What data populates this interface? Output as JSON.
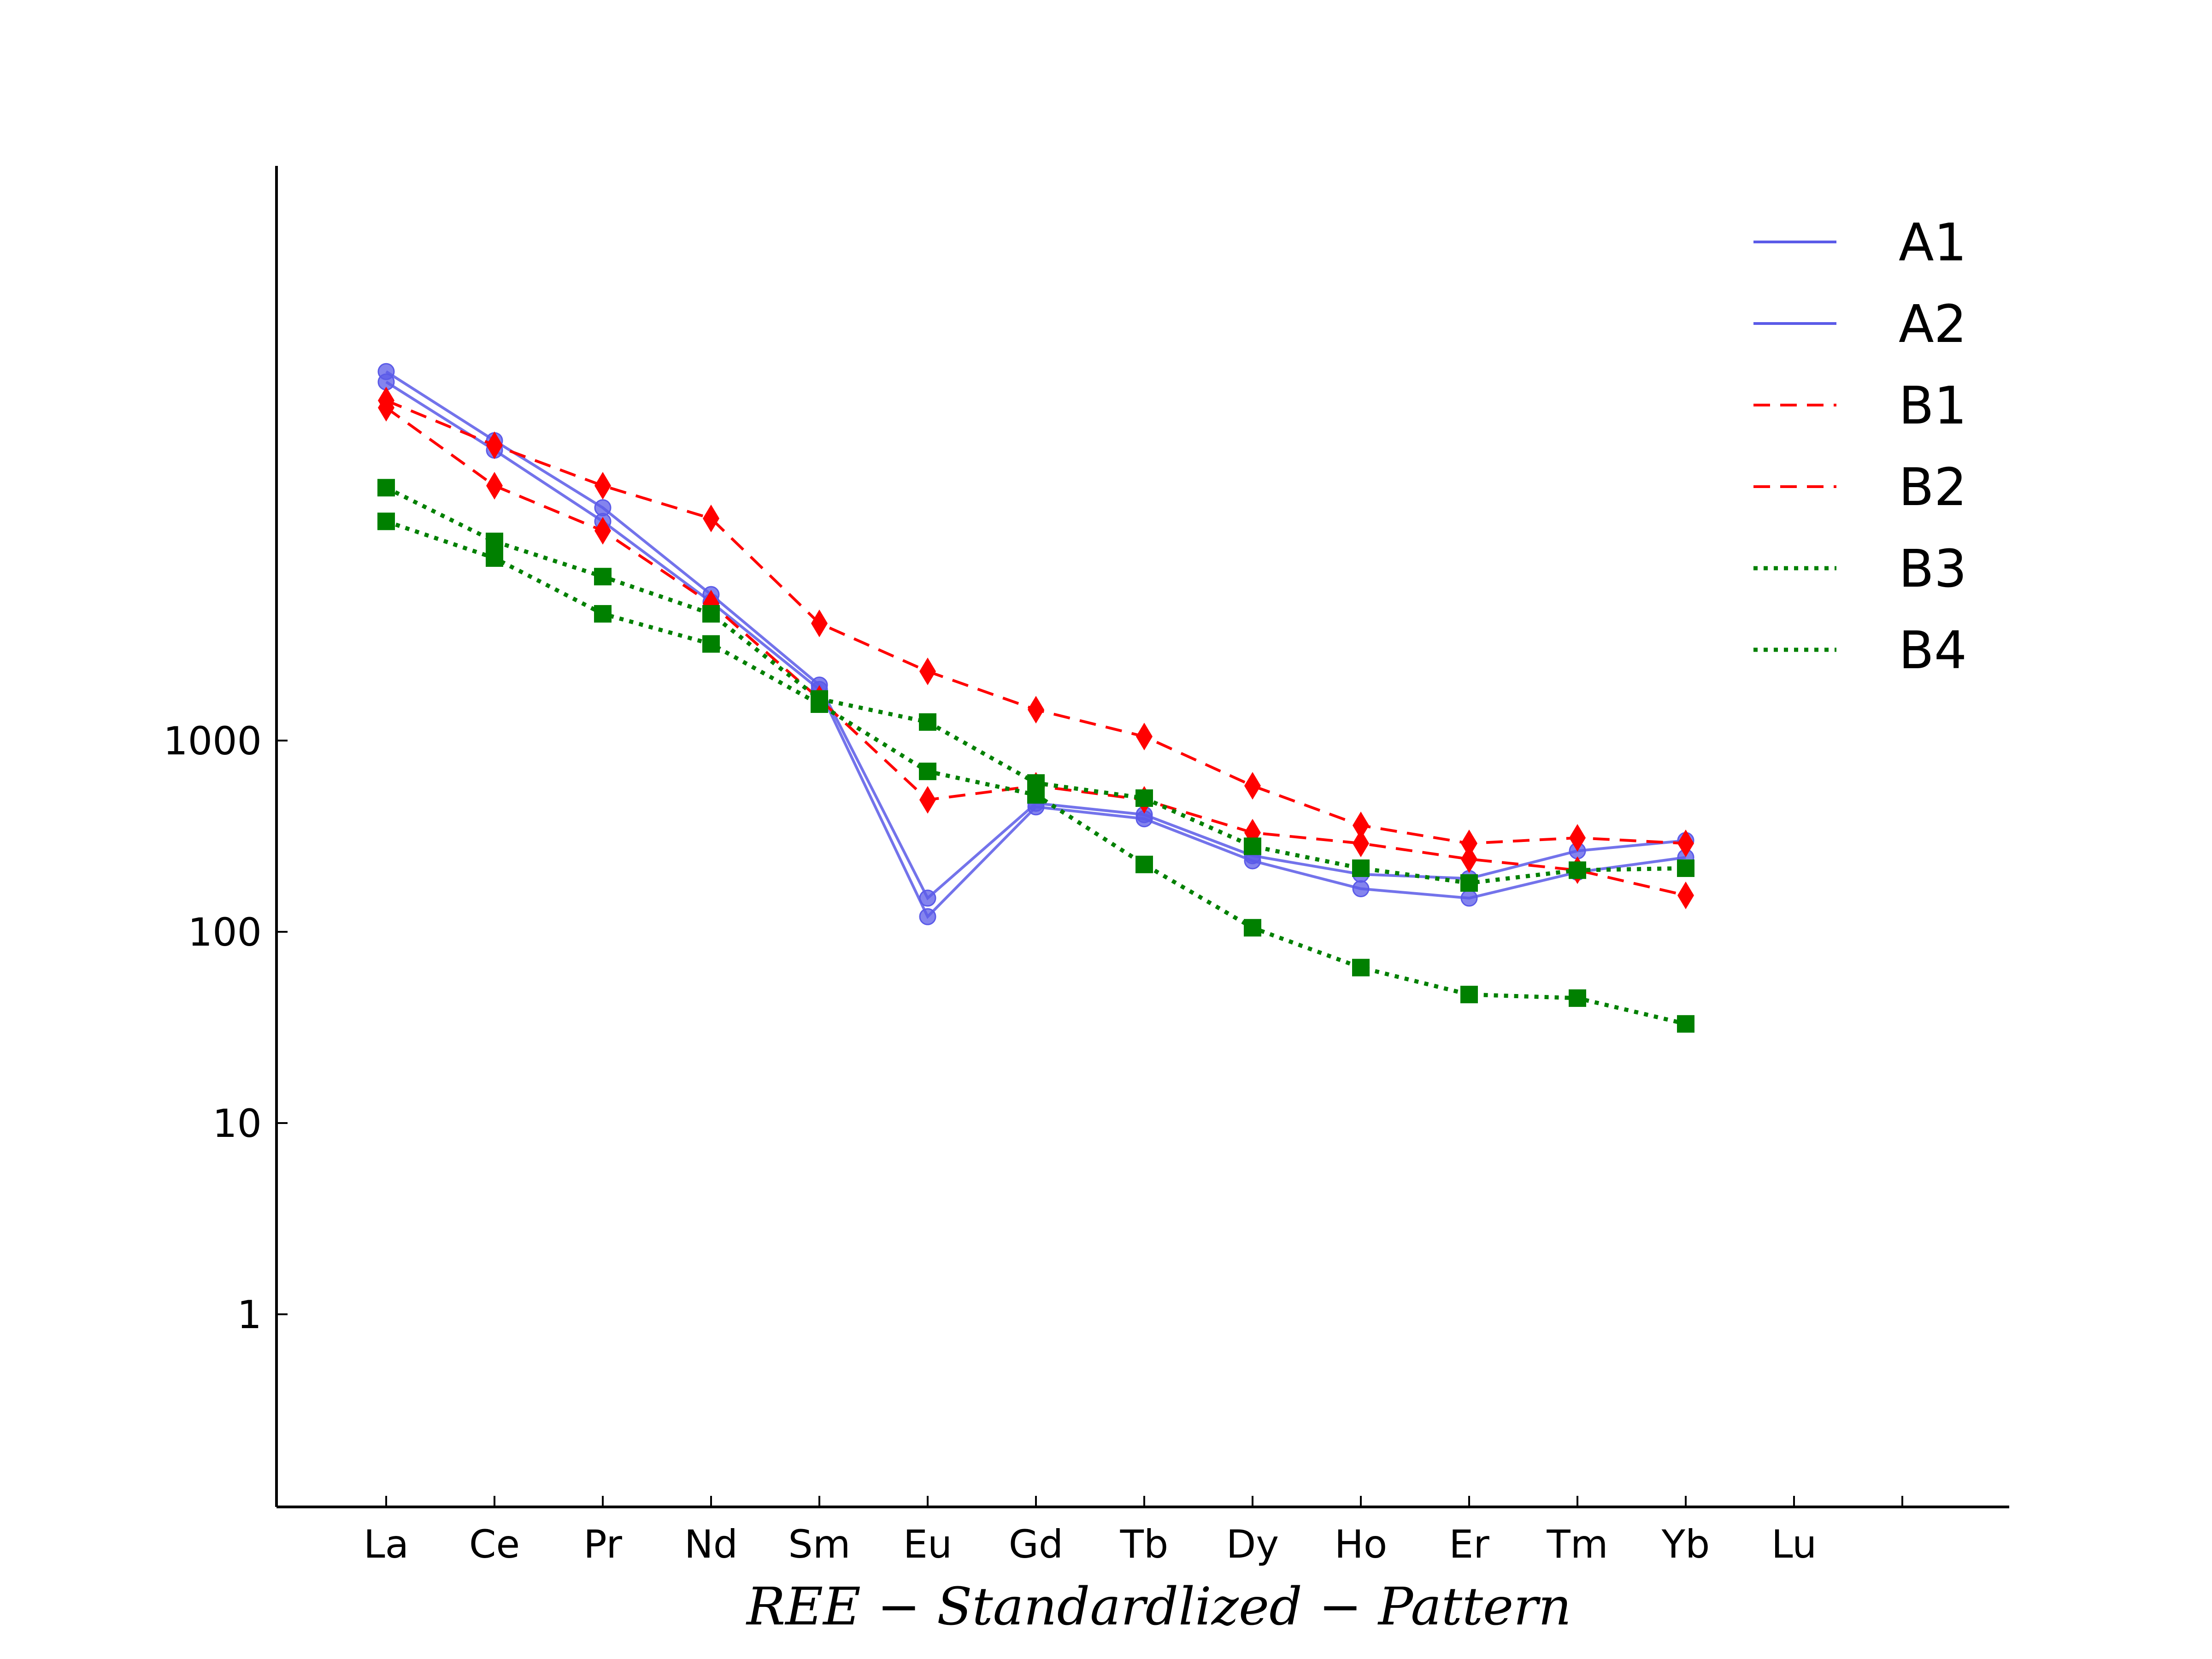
{
  "chart_data": {
    "type": "line",
    "xlabel": "$REE-Standardlized-Pattern$",
    "xlabel_display": "REE − Standardlized − Pattern",
    "ylabel": "",
    "yscale": "log",
    "categories": [
      "La",
      "Ce",
      "Pr",
      "Nd",
      "Sm",
      "Eu",
      "Gd",
      "Tb",
      "Dy",
      "Ho",
      "Er",
      "Tm",
      "Yb",
      "Lu"
    ],
    "yticks": [
      1,
      10,
      100,
      1000
    ],
    "ytick_labels": [
      "1",
      "10",
      "100",
      "1000"
    ],
    "ylim": [
      0.1,
      70000
    ],
    "legend_position": "top-right",
    "grid": false,
    "series": [
      {
        "name": "A1",
        "color": "#5b5be8",
        "style": "solid",
        "marker": "circle",
        "values": [
          75000,
          33000,
          14000,
          5300,
          1850,
          120,
          450,
          390,
          235,
          168,
          150,
          205,
          245,
          null
        ]
      },
      {
        "name": "A2",
        "color": "#5b5be8",
        "style": "solid",
        "marker": "circle",
        "values": [
          85000,
          37000,
          16500,
          5800,
          1950,
          150,
          470,
          410,
          250,
          200,
          190,
          265,
          300,
          null
        ]
      },
      {
        "name": "B1",
        "color": "#ff0000",
        "style": "dashed",
        "marker": "diamond",
        "values": [
          60000,
          35000,
          21500,
          14500,
          4100,
          2300,
          1450,
          1050,
          580,
          360,
          290,
          310,
          290,
          null
        ]
      },
      {
        "name": "B2",
        "color": "#ff0000",
        "style": "dashed",
        "marker": "diamond",
        "values": [
          55000,
          21500,
          12500,
          5200,
          1650,
          490,
          580,
          490,
          330,
          290,
          240,
          210,
          155,
          null
        ]
      },
      {
        "name": "B3",
        "color": "#008000",
        "style": "dotted",
        "marker": "square",
        "values": [
          21000,
          11000,
          7200,
          4600,
          1650,
          1250,
          600,
          500,
          280,
          215,
          180,
          210,
          215,
          null
        ]
      },
      {
        "name": "B4",
        "color": "#008000",
        "style": "dotted",
        "marker": "square",
        "values": [
          14000,
          9000,
          4600,
          3200,
          1550,
          690,
          520,
          225,
          105,
          65,
          47,
          45,
          33,
          null
        ]
      }
    ]
  }
}
